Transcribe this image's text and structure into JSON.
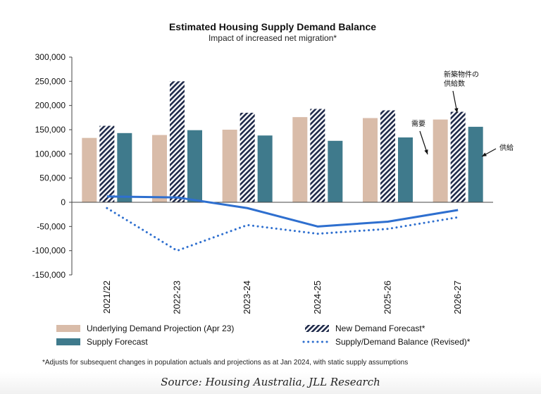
{
  "chart_data": {
    "type": "bar",
    "title": "Estimated Housing Supply Demand Balance",
    "subtitle": "Impact of increased net migration*",
    "categories": [
      "2021/22",
      "2022-23",
      "2023-24",
      "2024-25",
      "2025-26",
      "2026-27"
    ],
    "ylim": [
      -150000,
      300000
    ],
    "yticks": [
      "300,000",
      "250,000",
      "200,000",
      "150,000",
      "100,000",
      "50,000",
      "0",
      "-50,000",
      "-100,000",
      "-150,000"
    ],
    "series": [
      {
        "name": "Underlying Demand Projection (Apr 23)",
        "kind": "bar",
        "color": "#d9bca9",
        "values": [
          133000,
          139000,
          150000,
          176000,
          174000,
          171000
        ]
      },
      {
        "name": "New Demand Forecast*",
        "kind": "bar-hatched",
        "color": "#1f2a4a",
        "values": [
          158000,
          250000,
          185000,
          193000,
          190000,
          187000
        ]
      },
      {
        "name": "Supply Forecast",
        "kind": "bar",
        "color": "#3f7a8c",
        "values": [
          143000,
          149000,
          138000,
          127000,
          134000,
          156000
        ]
      },
      {
        "name": "",
        "kind": "line",
        "color": "#2e6fcf",
        "values": [
          12000,
          10000,
          -12000,
          -50000,
          -40000,
          -16000
        ]
      },
      {
        "name": "Supply/Demand Balance (Revised)*",
        "kind": "line-dotted",
        "color": "#2e6fcf",
        "values": [
          -12000,
          -100000,
          -47000,
          -65000,
          -55000,
          -31000
        ]
      }
    ],
    "annotations": [
      {
        "text": "新築物件の",
        "target": "New Demand Forecast 2026-27"
      },
      {
        "text": "供給数",
        "target": "New Demand Forecast 2026-27"
      },
      {
        "text": "需要",
        "target": "Underlying Demand Projection 2026-27"
      },
      {
        "text": "供給",
        "target": "Supply Forecast 2026-27"
      }
    ],
    "footnote": "*Adjusts for subsequent changes in population actuals and projections as at Jan 2024, with static supply assumptions",
    "grid": false,
    "legend": "bottom"
  },
  "source": "Source: Housing Australia, JLL Research"
}
